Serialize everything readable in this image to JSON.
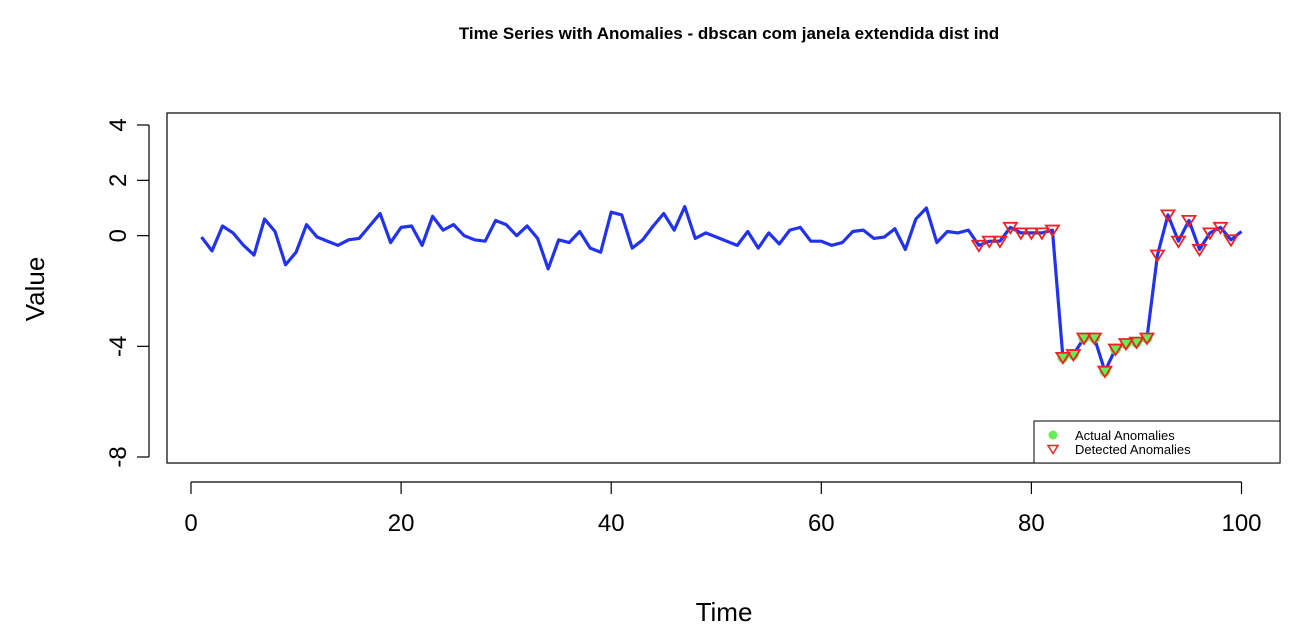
{
  "chart_data": {
    "type": "line",
    "title": "Time Series with Anomalies - dbscan com janela extendida dist ind",
    "xlabel": "Time",
    "ylabel": "Value",
    "xlim": [
      1,
      100
    ],
    "ylim": [
      -8,
      4
    ],
    "x_ticks": [
      0,
      20,
      40,
      60,
      80,
      100
    ],
    "y_ticks": [
      -8,
      -4,
      0,
      2,
      4
    ],
    "x_tick_labels": [
      "0",
      "20",
      "40",
      "60",
      "80",
      "100"
    ],
    "y_tick_labels": [
      "-8",
      "-4",
      "0",
      "2",
      "4"
    ],
    "grid": false,
    "legend_position": "bottom-right",
    "series": [
      {
        "values": [
          -0.05,
          -0.55,
          0.35,
          0.1,
          -0.35,
          -0.7,
          0.6,
          0.15,
          -1.05,
          -0.6,
          0.4,
          -0.05,
          -0.2,
          -0.35,
          -0.15,
          -0.1,
          0.35,
          0.8,
          -0.25,
          0.3,
          0.35,
          -0.35,
          0.7,
          0.2,
          0.4,
          0.0,
          -0.15,
          -0.2,
          0.55,
          0.4,
          -0.0,
          0.35,
          -0.1,
          -1.2,
          -0.15,
          -0.25,
          0.15,
          -0.45,
          -0.6,
          0.85,
          0.75,
          -0.45,
          -0.15,
          0.35,
          0.8,
          0.2,
          1.05,
          -0.1,
          0.1,
          -0.05,
          -0.2,
          -0.35,
          0.15,
          -0.45,
          0.1,
          -0.3,
          0.2,
          0.3,
          -0.2,
          -0.2,
          -0.35,
          -0.25,
          0.15,
          0.2,
          -0.1,
          -0.05,
          0.25,
          -0.5,
          0.6,
          1.0,
          -0.25,
          0.15,
          0.1,
          0.2,
          -0.35,
          -0.2,
          -0.2,
          0.3,
          0.1,
          0.1,
          0.1,
          0.2,
          -4.4,
          -4.3,
          -3.7,
          -3.7,
          -4.9,
          -4.1,
          -3.9,
          -3.85,
          -3.7,
          -0.7,
          0.75,
          -0.2,
          0.55,
          -0.5,
          0.1,
          0.3,
          -0.15,
          0.15
        ],
        "color": "#2233ee"
      }
    ],
    "legend": [
      {
        "label": "Actual Anomalies",
        "marker": "filled-circle",
        "color": "#66ee55"
      },
      {
        "label": "Detected Anomalies",
        "marker": "open-triangle-down",
        "color": "#ee2222"
      }
    ],
    "actual_anomalies_x": [
      83,
      84,
      85,
      86,
      87,
      88,
      89,
      90,
      91
    ],
    "detected_anomalies_x": [
      75,
      76,
      77,
      78,
      79,
      80,
      81,
      82,
      83,
      84,
      85,
      86,
      87,
      88,
      89,
      90,
      91,
      92,
      93,
      94,
      95,
      96,
      97,
      98,
      99
    ]
  }
}
